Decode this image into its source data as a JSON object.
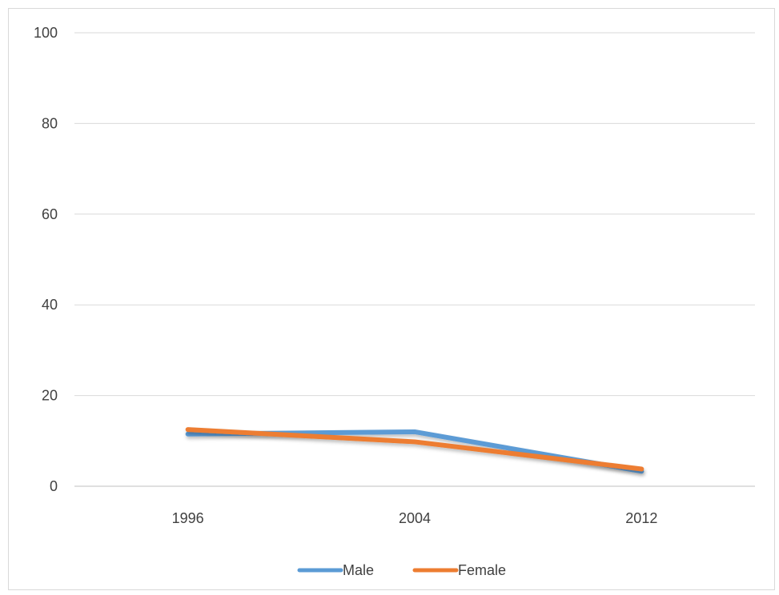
{
  "chart_data": {
    "type": "line",
    "title": "",
    "xlabel": "",
    "ylabel": "",
    "categories": [
      "1996",
      "2004",
      "2012"
    ],
    "ylim": [
      0,
      100
    ],
    "yticks": [
      0,
      20,
      40,
      60,
      80,
      100
    ],
    "ytick_labels": [
      "0",
      "20",
      "40",
      "60",
      "80",
      "100"
    ],
    "grid": true,
    "legend_position": "bottom",
    "series": [
      {
        "name": "Male",
        "values": [
          11.5,
          12,
          3.3
        ],
        "color": "#5b9bd5"
      },
      {
        "name": "Female",
        "values": [
          12.5,
          9.8,
          3.8
        ],
        "color": "#ed7d31"
      }
    ]
  }
}
